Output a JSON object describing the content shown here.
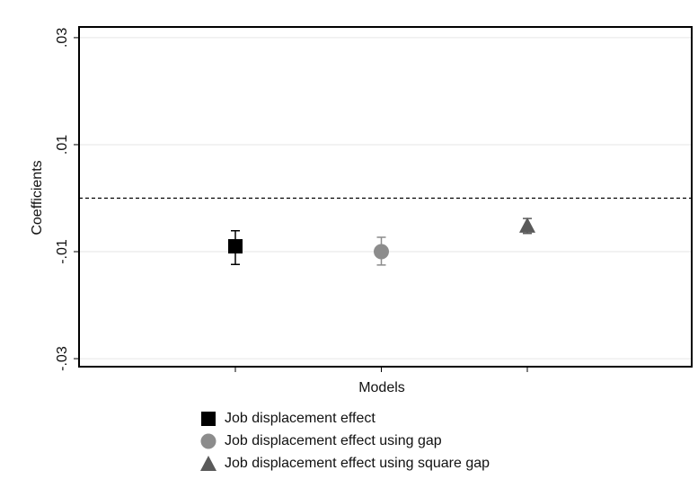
{
  "chart_data": {
    "type": "coefplot",
    "x_label": "Models",
    "y_label": "Coefficients",
    "categories": [
      null,
      null,
      null
    ],
    "ylim": [
      -0.0315,
      0.032
    ],
    "yticks": [
      {
        "value": -0.03,
        "label": "-.03"
      },
      {
        "value": -0.01,
        "label": "-.01"
      },
      {
        "value": 0.01,
        "label": ".01"
      },
      {
        "value": 0.03,
        "label": ".03"
      }
    ],
    "grid": true,
    "refline": 0,
    "series": [
      {
        "name": "Job displacement effect",
        "color": "#000000",
        "marker": "square",
        "values": [
          -0.009,
          null,
          null
        ],
        "low": [
          -0.0124,
          null,
          null
        ],
        "high": [
          -0.0061,
          null,
          null
        ]
      },
      {
        "name": "Job displacement effect using gap",
        "color": "#8c8c8c",
        "marker": "circle",
        "values": [
          null,
          -0.01,
          null
        ],
        "low": [
          null,
          -0.0125,
          null
        ],
        "high": [
          null,
          -0.0073,
          null
        ]
      },
      {
        "name": "Job displacement effect using square gap",
        "color": "#5a5a5a",
        "marker": "triangle",
        "values": [
          null,
          null,
          -0.0051
        ],
        "low": [
          null,
          null,
          -0.0066
        ],
        "high": [
          null,
          null,
          -0.0038
        ]
      }
    ],
    "legend": "bottom"
  }
}
